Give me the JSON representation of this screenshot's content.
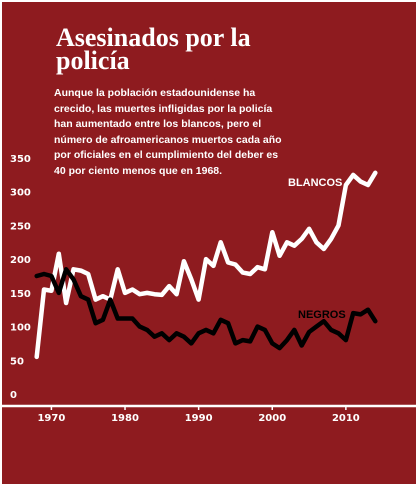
{
  "chart_data": {
    "type": "line",
    "title": "Asesinados por la policía",
    "subtitle": "Aunque la población estadounidense ha crecido, las muertes infligidas por la policía han aumentado entre los blancos, pero el número de afroamericanos muertos cada año por oficiales en el cumplimiento del deber es 40 por ciento menos que en 1968.",
    "xlabel": "",
    "ylabel": "",
    "xlim": [
      1967.5,
      2014.5
    ],
    "ylim": [
      0,
      350
    ],
    "y_ticks": [
      0,
      50,
      100,
      150,
      200,
      250,
      300,
      350
    ],
    "x_ticks": [
      1970,
      1980,
      1990,
      2000,
      2010
    ],
    "grid": false,
    "series": [
      {
        "name": "BLANCOS",
        "color": "#ffffff",
        "x": [
          1968,
          1969,
          1970,
          1971,
          1972,
          1973,
          1974,
          1975,
          1976,
          1977,
          1978,
          1979,
          1980,
          1981,
          1982,
          1983,
          1984,
          1985,
          1986,
          1987,
          1988,
          1989,
          1990,
          1991,
          1992,
          1993,
          1994,
          1995,
          1996,
          1997,
          1998,
          1999,
          2000,
          2001,
          2002,
          2003,
          2004,
          2005,
          2006,
          2007,
          2008,
          2009,
          2010,
          2011,
          2012,
          2013,
          2014
        ],
        "values": [
          55,
          155,
          153,
          208,
          135,
          185,
          183,
          178,
          140,
          145,
          140,
          185,
          150,
          155,
          148,
          150,
          148,
          147,
          160,
          148,
          197,
          170,
          140,
          200,
          190,
          225,
          195,
          192,
          180,
          178,
          188,
          185,
          240,
          205,
          225,
          220,
          230,
          245,
          225,
          215,
          230,
          250,
          310,
          325,
          315,
          310,
          328
        ]
      },
      {
        "name": "NEGROS",
        "color": "#000000",
        "x": [
          1968,
          1969,
          1970,
          1971,
          1972,
          1973,
          1974,
          1975,
          1976,
          1977,
          1978,
          1979,
          1980,
          1981,
          1982,
          1983,
          1984,
          1985,
          1986,
          1987,
          1988,
          1989,
          1990,
          1991,
          1992,
          1993,
          1994,
          1995,
          1996,
          1997,
          1998,
          1999,
          2000,
          2001,
          2002,
          2003,
          2004,
          2005,
          2006,
          2007,
          2008,
          2009,
          2010,
          2011,
          2012,
          2013,
          2014
        ],
        "values": [
          175,
          178,
          175,
          150,
          185,
          170,
          145,
          140,
          105,
          110,
          140,
          112,
          112,
          112,
          100,
          95,
          85,
          90,
          80,
          90,
          85,
          75,
          90,
          95,
          90,
          110,
          105,
          75,
          80,
          78,
          100,
          95,
          75,
          68,
          80,
          95,
          72,
          92,
          100,
          108,
          95,
          90,
          80,
          120,
          118,
          125,
          108
        ]
      }
    ],
    "annotations": [
      "BLANCOS",
      "NEGROS"
    ]
  }
}
